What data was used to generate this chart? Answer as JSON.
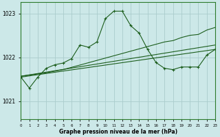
{
  "background_color": "#cce8e8",
  "grid_color": "#aacccc",
  "line_color": "#1a5c1a",
  "ylabel_values": [
    1021,
    1022,
    1023
  ],
  "xlim": [
    0,
    23
  ],
  "ylim": [
    1020.6,
    1023.25
  ],
  "xlabel": "Graphe pression niveau de la mer (hPa)",
  "xtick_labels": [
    "0",
    "1",
    "2",
    "3",
    "4",
    "5",
    "6",
    "7",
    "8",
    "9",
    "10",
    "11",
    "12",
    "13",
    "14",
    "15",
    "16",
    "17",
    "18",
    "19",
    "20",
    "21",
    "22",
    "23"
  ],
  "line1_x": [
    0,
    1,
    2,
    3,
    4,
    5,
    6,
    7,
    8,
    9,
    10,
    11,
    12,
    13,
    14,
    15,
    16,
    17,
    18,
    19,
    20,
    21,
    22,
    23
  ],
  "line1_y": [
    1021.55,
    1021.3,
    1021.55,
    1021.75,
    1021.83,
    1021.87,
    1021.97,
    1022.28,
    1022.23,
    1022.35,
    1022.88,
    1023.05,
    1023.05,
    1022.72,
    1022.55,
    1022.18,
    1021.88,
    1021.75,
    1021.72,
    1021.78,
    1021.78,
    1021.78,
    1022.05,
    1022.18
  ],
  "line2_x": [
    0,
    23
  ],
  "line2_y": [
    1021.55,
    1022.18
  ],
  "line3_x": [
    0,
    23
  ],
  "line3_y": [
    1021.57,
    1022.28
  ],
  "line4_x": [
    0,
    3,
    5,
    17,
    18,
    19,
    20,
    21,
    22,
    23
  ],
  "line4_y": [
    1021.57,
    1021.65,
    1021.72,
    1022.35,
    1022.38,
    1022.45,
    1022.5,
    1022.52,
    1022.62,
    1022.68
  ]
}
